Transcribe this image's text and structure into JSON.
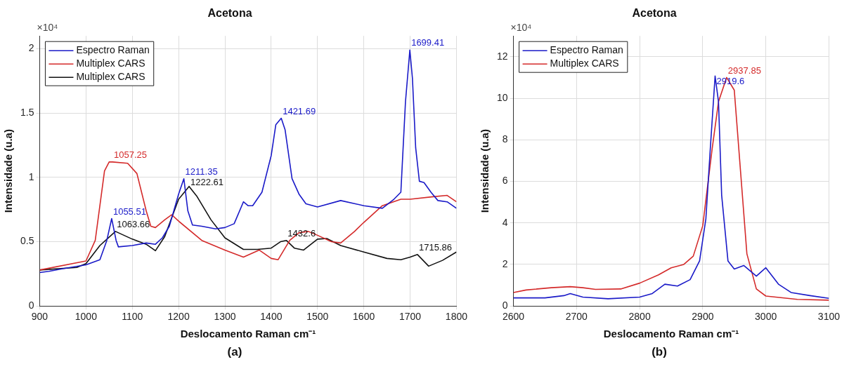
{
  "chart_data": [
    {
      "type": "line",
      "title": "Acetona",
      "xlabel": "Deslocamento Raman cm⁻¹",
      "ylabel": "Intensidade (u.a)",
      "xlim": [
        900,
        1800
      ],
      "xticks": [
        900,
        1000,
        1100,
        1200,
        1300,
        1400,
        1500,
        1600,
        1700,
        1800
      ],
      "ylim": [
        0,
        2.1
      ],
      "yticks": [
        0,
        0.5,
        1,
        1.5,
        2
      ],
      "grid": true,
      "legend": "top left",
      "marker": "none",
      "line_style": "solid",
      "series": [
        {
          "name": "Espectro Raman",
          "color": "#1a1ac8",
          "x": [
            900,
            920,
            950,
            1000,
            1030,
            1045,
            1055.51,
            1065,
            1070,
            1100,
            1130,
            1150,
            1165,
            1180,
            1200,
            1211.35,
            1220,
            1230,
            1250,
            1280,
            1300,
            1320,
            1340,
            1350,
            1360,
            1380,
            1400,
            1410,
            1421.69,
            1430,
            1445,
            1460,
            1475,
            1500,
            1550,
            1600,
            1640,
            1665,
            1680,
            1690,
            1699.41,
            1705,
            1712,
            1720,
            1730,
            1745,
            1760,
            1780,
            1800
          ],
          "values": [
            0.26,
            0.27,
            0.29,
            0.32,
            0.36,
            0.51,
            0.68,
            0.51,
            0.46,
            0.47,
            0.49,
            0.48,
            0.53,
            0.62,
            0.87,
            0.99,
            0.74,
            0.63,
            0.62,
            0.6,
            0.61,
            0.64,
            0.81,
            0.78,
            0.78,
            0.885,
            1.17,
            1.41,
            1.46,
            1.37,
            0.99,
            0.87,
            0.795,
            0.77,
            0.82,
            0.78,
            0.76,
            0.83,
            0.885,
            1.59,
            1.99,
            1.77,
            1.23,
            0.97,
            0.96,
            0.885,
            0.82,
            0.81,
            0.76
          ]
        },
        {
          "name": "Multiplex CARS",
          "color": "#d42a2a",
          "x": [
            900,
            1000,
            1020,
            1040,
            1050,
            1057.25,
            1090,
            1110,
            1130,
            1140,
            1150,
            1170,
            1185,
            1200,
            1250,
            1300,
            1340,
            1374,
            1400,
            1415,
            1440,
            1460,
            1480,
            1500,
            1530,
            1550,
            1580,
            1600,
            1640,
            1680,
            1700,
            1750,
            1780,
            1800
          ],
          "values": [
            0.28,
            0.35,
            0.51,
            1.05,
            1.12,
            1.12,
            1.11,
            1.03,
            0.74,
            0.62,
            0.61,
            0.67,
            0.71,
            0.66,
            0.51,
            0.435,
            0.38,
            0.435,
            0.37,
            0.36,
            0.51,
            0.57,
            0.58,
            0.55,
            0.5,
            0.49,
            0.58,
            0.65,
            0.78,
            0.83,
            0.83,
            0.85,
            0.86,
            0.81
          ]
        },
        {
          "name": "Multiplex CARS",
          "color": "#111111",
          "x": [
            900,
            980,
            1000,
            1030,
            1063.66,
            1100,
            1130,
            1150,
            1170,
            1200,
            1222.61,
            1240,
            1270,
            1300,
            1340,
            1370,
            1400,
            1420,
            1432.6,
            1450,
            1470,
            1500,
            1520,
            1550,
            1600,
            1650,
            1680,
            1700,
            1715.86,
            1740,
            1770,
            1800
          ],
          "values": [
            0.28,
            0.3,
            0.33,
            0.47,
            0.58,
            0.52,
            0.48,
            0.43,
            0.54,
            0.83,
            0.93,
            0.85,
            0.67,
            0.53,
            0.44,
            0.44,
            0.45,
            0.5,
            0.51,
            0.45,
            0.435,
            0.52,
            0.525,
            0.47,
            0.42,
            0.37,
            0.36,
            0.38,
            0.4,
            0.31,
            0.355,
            0.42
          ]
        }
      ],
      "annotations": [
        "×10⁴",
        "(a)",
        {
          "text": "1057.25",
          "x": 1057.25,
          "y": 1.12
        },
        {
          "text": "1055.51",
          "x": 1055.51,
          "y": 0.68
        },
        {
          "text": "1063.66",
          "x": 1063.66,
          "y": 0.58
        },
        {
          "text": "1211.35",
          "x": 1211.35,
          "y": 0.99
        },
        {
          "text": "1222.61",
          "x": 1222.61,
          "y": 0.93
        },
        {
          "text": "1421.69",
          "x": 1421.69,
          "y": 1.46
        },
        {
          "text": "1432.6",
          "x": 1432.6,
          "y": 0.51
        },
        {
          "text": "1699.41",
          "x": 1699.41,
          "y": 1.99
        },
        {
          "text": "1715.86",
          "x": 1715.86,
          "y": 0.4
        }
      ]
    },
    {
      "type": "line",
      "title": "Acetona",
      "xlabel": "Deslocamento Raman cm⁻¹",
      "ylabel": "Intensidade (u.a)",
      "xlim": [
        2600,
        3100
      ],
      "xticks": [
        2600,
        2700,
        2800,
        2900,
        3000,
        3100
      ],
      "ylim": [
        0,
        13
      ],
      "yticks": [
        0,
        2,
        4,
        6,
        8,
        10,
        12
      ],
      "grid": true,
      "legend": "top left",
      "marker": "none",
      "line_style": "solid",
      "series": [
        {
          "name": "Espectro Raman",
          "color": "#1a1ac8",
          "x": [
            2600,
            2650,
            2680,
            2690,
            2710,
            2750,
            2800,
            2820,
            2840,
            2860,
            2880,
            2895,
            2905,
            2912,
            2919.6,
            2925,
            2930,
            2940,
            2950,
            2965,
            2985,
            3000,
            3020,
            3040,
            3070,
            3100
          ],
          "values": [
            0.39,
            0.39,
            0.5,
            0.6,
            0.43,
            0.35,
            0.43,
            0.6,
            1.05,
            0.96,
            1.27,
            2.17,
            4.2,
            7.58,
            11.07,
            9.83,
            5.33,
            2.17,
            1.78,
            1.95,
            1.44,
            1.84,
            1.05,
            0.65,
            0.5,
            0.37
          ]
        },
        {
          "name": "Multiplex CARS",
          "color": "#d42a2a",
          "x": [
            2600,
            2620,
            2660,
            2690,
            2710,
            2730,
            2770,
            2800,
            2830,
            2850,
            2870,
            2885,
            2900,
            2915,
            2925,
            2937.85,
            2950,
            2960,
            2970,
            2985,
            3000,
            3050,
            3100
          ],
          "values": [
            0.65,
            0.77,
            0.88,
            0.93,
            0.88,
            0.8,
            0.82,
            1.1,
            1.5,
            1.84,
            2.0,
            2.4,
            3.86,
            7.58,
            9.83,
            11.0,
            10.39,
            6.45,
            2.51,
            0.82,
            0.48,
            0.32,
            0.28
          ]
        }
      ],
      "annotations": [
        "×10⁴",
        "(b)",
        {
          "text": "2937.85",
          "x": 2937.85,
          "y": 11.0
        },
        {
          "text": "2919.6",
          "x": 2919.6,
          "y": 11.07
        }
      ]
    }
  ]
}
